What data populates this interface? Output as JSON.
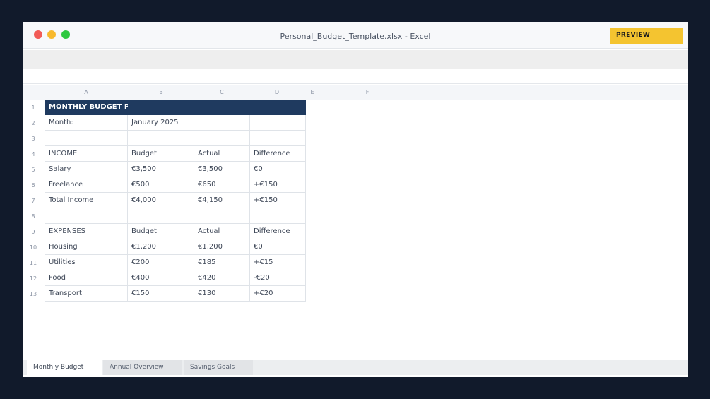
{
  "window": {
    "title": "Personal_Budget_Template.xlsx - Excel",
    "badge": "PREVIEW"
  },
  "columns": [
    "A",
    "B",
    "C",
    "D",
    "E",
    "F"
  ],
  "rows": [
    "1",
    "2",
    "3",
    "4",
    "5",
    "6",
    "7",
    "8",
    "9",
    "10",
    "11",
    "12",
    "13"
  ],
  "sheet": {
    "title_cell": "MONTHLY BUDGET PLANNER",
    "month_label": "Month:",
    "month_value": "January 2025",
    "income": {
      "header": [
        "INCOME",
        "Budget",
        "Actual",
        "Difference"
      ],
      "rows": [
        [
          "Salary",
          "€3,500",
          "€3,500",
          "€0"
        ],
        [
          "Freelance",
          "€500",
          "€650",
          "+€150"
        ],
        [
          "Total Income",
          "€4,000",
          "€4,150",
          "+€150"
        ]
      ]
    },
    "expenses": {
      "header": [
        "EXPENSES",
        "Budget",
        "Actual",
        "Difference"
      ],
      "rows": [
        [
          "Housing",
          "€1,200",
          "€1,200",
          "€0"
        ],
        [
          "Utilities",
          "€200",
          "€185",
          "+€15"
        ],
        [
          "Food",
          "€400",
          "€420",
          "-€20"
        ],
        [
          "Transport",
          "€150",
          "€130",
          "+€20"
        ]
      ]
    }
  },
  "tabs": [
    "Monthly Budget",
    "Annual Overview",
    "Savings Goals"
  ],
  "colors": {
    "header_band": "#1f3a5f",
    "badge": "#f4c430",
    "background": "#111a2b"
  }
}
